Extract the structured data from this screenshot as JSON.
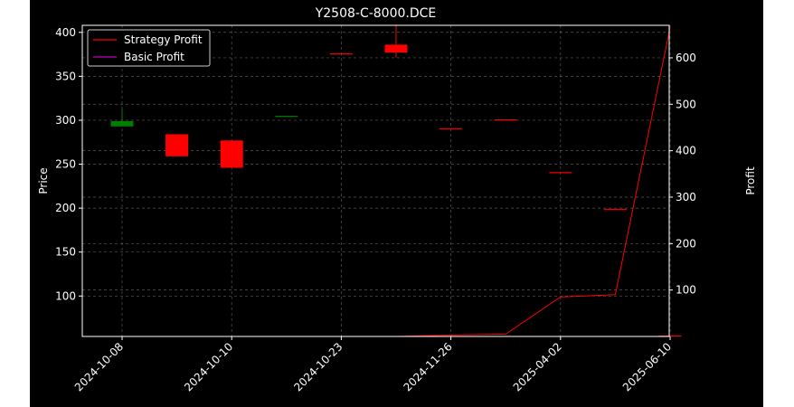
{
  "chart_data": {
    "type": "candlestick+line",
    "title": "Y2508-C-8000.DCE",
    "ylabel_left": "Price",
    "ylabel_right": "Profit",
    "x_tick_labels": [
      "2024-10-08",
      "2024-10-10",
      "2024-10-23",
      "2024-11-26",
      "2025-04-02",
      "2025-06-10"
    ],
    "y_left_ticks": [
      100,
      150,
      200,
      250,
      300,
      350,
      400
    ],
    "y_right_ticks": [
      100,
      200,
      300,
      400,
      500,
      600
    ],
    "y_left_range": [
      54,
      408
    ],
    "y_right_range": [
      0,
      670
    ],
    "grid": true,
    "legend_position": "upper-left",
    "candles": [
      {
        "i": 0,
        "open": 293,
        "close": 299,
        "high": 313,
        "low": 293,
        "direction": "up"
      },
      {
        "i": 1,
        "open": 284,
        "close": 259,
        "high": 284,
        "low": 259,
        "direction": "down"
      },
      {
        "i": 2,
        "open": 277,
        "close": 246,
        "high": 277,
        "low": 246,
        "direction": "down"
      },
      {
        "i": 3,
        "open": 304,
        "close": 305,
        "high": 305,
        "low": 304,
        "direction": "up"
      },
      {
        "i": 4,
        "open": 376,
        "close": 376,
        "high": 376,
        "low": 376,
        "direction": "down"
      },
      {
        "i": 5,
        "open": 386,
        "close": 377,
        "high": 408,
        "low": 371,
        "direction": "down"
      },
      {
        "i": 6,
        "open": 291,
        "close": 291,
        "high": 291,
        "low": 291,
        "direction": "down"
      },
      {
        "i": 7,
        "open": 301,
        "close": 301,
        "high": 301,
        "low": 301,
        "direction": "down"
      },
      {
        "i": 8,
        "open": 241,
        "close": 241,
        "high": 241,
        "low": 241,
        "direction": "down"
      },
      {
        "i": 9,
        "open": 199,
        "close": 199,
        "high": 199,
        "low": 199,
        "direction": "down"
      },
      {
        "i": 10,
        "open": 55,
        "close": 55,
        "high": 55,
        "low": 55,
        "direction": "down"
      }
    ],
    "series": [
      {
        "name": "Strategy Profit",
        "color": "#ff0000",
        "values": [
          0,
          0,
          0,
          0,
          0,
          0,
          3,
          5,
          85,
          90,
          665
        ]
      },
      {
        "name": "Basic Profit",
        "color": "#bf00bf",
        "values": [
          0,
          0,
          0,
          0,
          0,
          0,
          0,
          0,
          0,
          0,
          0
        ]
      }
    ],
    "colors": {
      "up": "#008000",
      "down": "#ff0000",
      "grid": "#b0b0b0",
      "frame": "#ffffff",
      "background": "#000000"
    }
  }
}
